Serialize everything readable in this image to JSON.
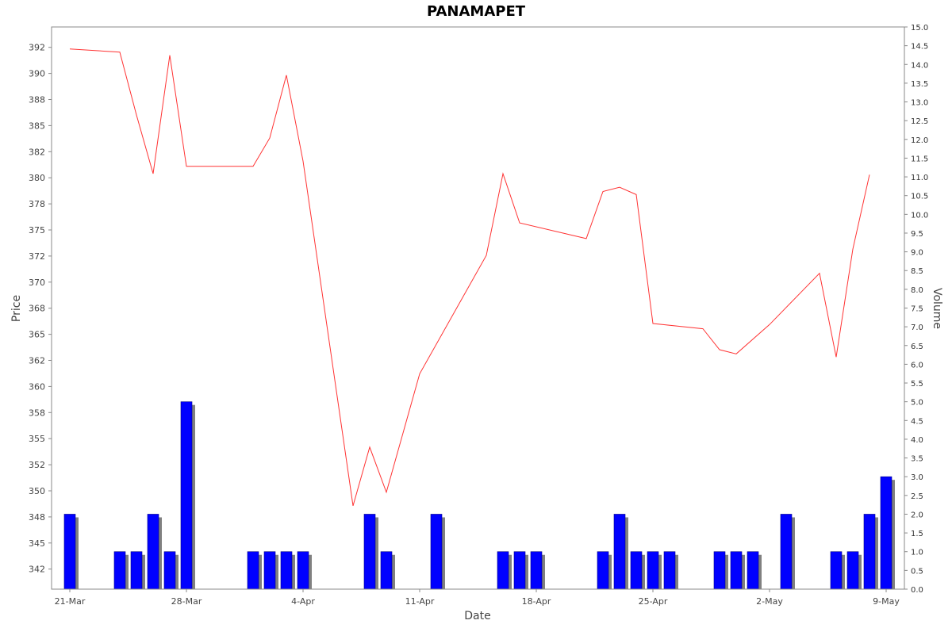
{
  "chart_data": {
    "type": "line",
    "title": "PANAMAPET",
    "xlabel": "Date",
    "ylabel": "Price",
    "y2label": "Volume",
    "x_ticks": [
      "21-Mar",
      "28-Mar",
      "4-Apr",
      "11-Apr",
      "18-Apr",
      "25-Apr",
      "2-May",
      "9-May"
    ],
    "y_ticks": [
      "342",
      "345",
      "348",
      "350",
      "352",
      "355",
      "358",
      "360",
      "362",
      "365",
      "368",
      "370",
      "372",
      "375",
      "378",
      "380",
      "382",
      "385",
      "388",
      "390",
      "392"
    ],
    "y2_ticks": [
      "0.0",
      "0.5",
      "1.0",
      "1.5",
      "2.0",
      "2.5",
      "3.0",
      "3.5",
      "4.0",
      "4.5",
      "5.0",
      "5.5",
      "6.0",
      "6.5",
      "7.0",
      "7.5",
      "8.0",
      "8.5",
      "9.0",
      "9.5",
      "10.0",
      "10.5",
      "11.0",
      "11.5",
      "12.0",
      "12.5",
      "13.0",
      "13.5",
      "14.0",
      "14.5",
      "15.0"
    ],
    "ylim": [
      340.25,
      393.9
    ],
    "y2lim": [
      0,
      15
    ],
    "grid": false,
    "series": [
      {
        "name": "Price",
        "type": "line",
        "color": "#ff3333",
        "points": [
          {
            "date": "2023-03-21",
            "value": 391.8
          },
          {
            "date": "2023-03-24",
            "value": 391.5
          },
          {
            "date": "2023-03-25",
            "value": 385.5
          },
          {
            "date": "2023-03-26",
            "value": 379.9
          },
          {
            "date": "2023-03-27",
            "value": 391.2
          },
          {
            "date": "2023-03-28",
            "value": 380.6
          },
          {
            "date": "2023-04-01",
            "value": 380.6
          },
          {
            "date": "2023-04-02",
            "value": 383.3
          },
          {
            "date": "2023-04-03",
            "value": 389.3
          },
          {
            "date": "2023-04-04",
            "value": 381.1
          },
          {
            "date": "2023-04-07",
            "value": 348.2
          },
          {
            "date": "2023-04-08",
            "value": 353.8
          },
          {
            "date": "2023-04-09",
            "value": 349.5
          },
          {
            "date": "2023-04-11",
            "value": 360.8
          },
          {
            "date": "2023-04-15",
            "value": 372.1
          },
          {
            "date": "2023-04-16",
            "value": 379.9
          },
          {
            "date": "2023-04-17",
            "value": 375.2
          },
          {
            "date": "2023-04-21",
            "value": 373.7
          },
          {
            "date": "2023-04-22",
            "value": 378.2
          },
          {
            "date": "2023-04-23",
            "value": 378.6
          },
          {
            "date": "2023-04-24",
            "value": 377.9
          },
          {
            "date": "2023-04-25",
            "value": 365.6
          },
          {
            "date": "2023-04-28",
            "value": 365.1
          },
          {
            "date": "2023-04-29",
            "value": 363.1
          },
          {
            "date": "2023-04-30",
            "value": 362.7
          },
          {
            "date": "2023-05-02",
            "value": 365.5
          },
          {
            "date": "2023-05-05",
            "value": 370.4
          },
          {
            "date": "2023-05-06",
            "value": 362.4
          },
          {
            "date": "2023-05-07",
            "value": 372.7
          },
          {
            "date": "2023-05-08",
            "value": 379.8
          }
        ]
      },
      {
        "name": "Volume",
        "type": "bar",
        "color": "#0000ff",
        "shadow_color": "#808080",
        "points": [
          {
            "date": "2023-03-21",
            "value": 2
          },
          {
            "date": "2023-03-24",
            "value": 1
          },
          {
            "date": "2023-03-25",
            "value": 1
          },
          {
            "date": "2023-03-26",
            "value": 2
          },
          {
            "date": "2023-03-27",
            "value": 1
          },
          {
            "date": "2023-03-28",
            "value": 5
          },
          {
            "date": "2023-04-01",
            "value": 1
          },
          {
            "date": "2023-04-02",
            "value": 1
          },
          {
            "date": "2023-04-03",
            "value": 1
          },
          {
            "date": "2023-04-04",
            "value": 1
          },
          {
            "date": "2023-04-08",
            "value": 2
          },
          {
            "date": "2023-04-09",
            "value": 1
          },
          {
            "date": "2023-04-12",
            "value": 2
          },
          {
            "date": "2023-04-16",
            "value": 1
          },
          {
            "date": "2023-04-17",
            "value": 1
          },
          {
            "date": "2023-04-18",
            "value": 1
          },
          {
            "date": "2023-04-22",
            "value": 1
          },
          {
            "date": "2023-04-23",
            "value": 2
          },
          {
            "date": "2023-04-24",
            "value": 1
          },
          {
            "date": "2023-04-25",
            "value": 1
          },
          {
            "date": "2023-04-26",
            "value": 1
          },
          {
            "date": "2023-04-29",
            "value": 1
          },
          {
            "date": "2023-04-30",
            "value": 1
          },
          {
            "date": "2023-05-01",
            "value": 1
          },
          {
            "date": "2023-05-03",
            "value": 2
          },
          {
            "date": "2023-05-06",
            "value": 1
          },
          {
            "date": "2023-05-07",
            "value": 1
          },
          {
            "date": "2023-05-08",
            "value": 2
          },
          {
            "date": "2023-05-09",
            "value": 3
          }
        ]
      }
    ]
  }
}
